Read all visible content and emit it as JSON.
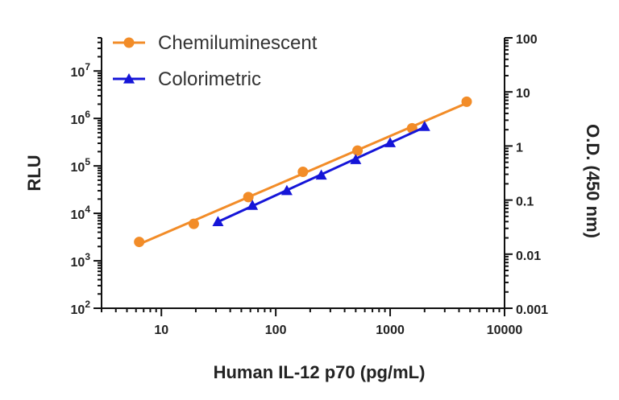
{
  "chart_data": {
    "type": "line",
    "xlabel": "Human IL-12 p70 (pg/mL)",
    "ylabel": "RLU",
    "y2label": "O.D. (450 nm)",
    "x_scale": "log",
    "y_scale": "log",
    "y2_scale": "log",
    "xlim": [
      3,
      10000
    ],
    "ylim": [
      100,
      50000000
    ],
    "y2lim": [
      0.001,
      100
    ],
    "x_ticks": [
      {
        "value": 10,
        "label": "10"
      },
      {
        "value": 100,
        "label": "100"
      },
      {
        "value": 1000,
        "label": "1000"
      },
      {
        "value": 10000,
        "label": "10000"
      }
    ],
    "y_ticks": [
      {
        "value": 100,
        "base": "10",
        "exp": "2"
      },
      {
        "value": 1000,
        "base": "10",
        "exp": "3"
      },
      {
        "value": 10000,
        "base": "10",
        "exp": "4"
      },
      {
        "value": 100000,
        "base": "10",
        "exp": "5"
      },
      {
        "value": 1000000,
        "base": "10",
        "exp": "6"
      },
      {
        "value": 10000000,
        "base": "10",
        "exp": "7"
      }
    ],
    "y2_ticks": [
      {
        "value": 0.001,
        "label": "0.001"
      },
      {
        "value": 0.01,
        "label": "0.01"
      },
      {
        "value": 0.1,
        "label": "0.1"
      },
      {
        "value": 1,
        "label": "1"
      },
      {
        "value": 10,
        "label": "10"
      },
      {
        "value": 100,
        "label": "100"
      }
    ],
    "grid": false,
    "legend": "top-left",
    "series": [
      {
        "name": "Chemiluminescent",
        "axis": "left",
        "color": "#F28C28",
        "marker": "circle",
        "x": [
          6.4,
          19.2,
          57.6,
          172.8,
          518.4,
          1555,
          4666
        ],
        "y": [
          2500,
          6000,
          22000,
          75000,
          210000,
          620000,
          2250000
        ]
      },
      {
        "name": "Colorimetric",
        "axis": "right",
        "color": "#1515D8",
        "marker": "triangle",
        "x": [
          31.25,
          62.5,
          125,
          250,
          500,
          1000,
          2000
        ],
        "y": [
          0.04,
          0.08,
          0.15,
          0.29,
          0.56,
          1.15,
          2.3
        ]
      }
    ]
  }
}
